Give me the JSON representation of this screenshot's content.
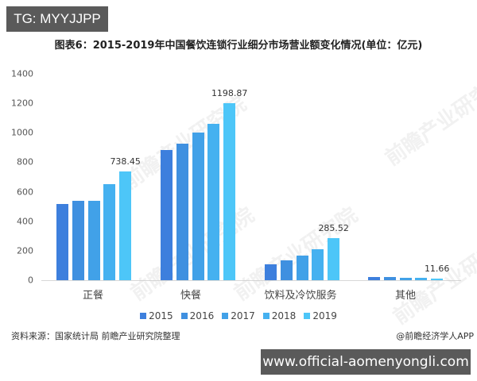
{
  "badges": {
    "top": "TG: MYYJJPP",
    "bottom": "www.official-aomenyongli.com"
  },
  "footer": {
    "source": "资料来源：国家统计局 前瞻产业研究院整理",
    "credit": "@前瞻经济学人APP"
  },
  "watermark": "前瞻产业研究院",
  "colors": {
    "2015": "#3d7fdd",
    "2016": "#3f90e0",
    "2017": "#41a1e8",
    "2018": "#45b1f0",
    "2019": "#4dc6f8",
    "axis": "#d8d8d8",
    "badge": "#5a5a5a"
  },
  "chart_data": {
    "type": "bar",
    "title": "图表6：2015-2019年中国餐饮连锁行业细分市场营业额变化情况(单位：亿元)",
    "xlabel": "",
    "ylabel": "",
    "ylim": [
      0,
      1400
    ],
    "yticks": [
      0,
      200,
      400,
      600,
      800,
      1000,
      1200,
      1400
    ],
    "grid": false,
    "legend_position": "bottom",
    "categories": [
      "正餐",
      "快餐",
      "饮料及冷饮服务",
      "其他"
    ],
    "series": [
      {
        "name": "2015",
        "values": [
          515,
          883,
          106,
          19
        ]
      },
      {
        "name": "2016",
        "values": [
          541,
          926,
          136,
          21
        ]
      },
      {
        "name": "2017",
        "values": [
          536,
          1002,
          165,
          18
        ]
      },
      {
        "name": "2018",
        "values": [
          653,
          1061,
          208,
          17
        ]
      },
      {
        "name": "2019",
        "values": [
          738.45,
          1198.87,
          285.52,
          11.66
        ]
      }
    ],
    "annotations": [
      "738.45",
      "1198.87",
      "285.52",
      "11.66"
    ]
  }
}
